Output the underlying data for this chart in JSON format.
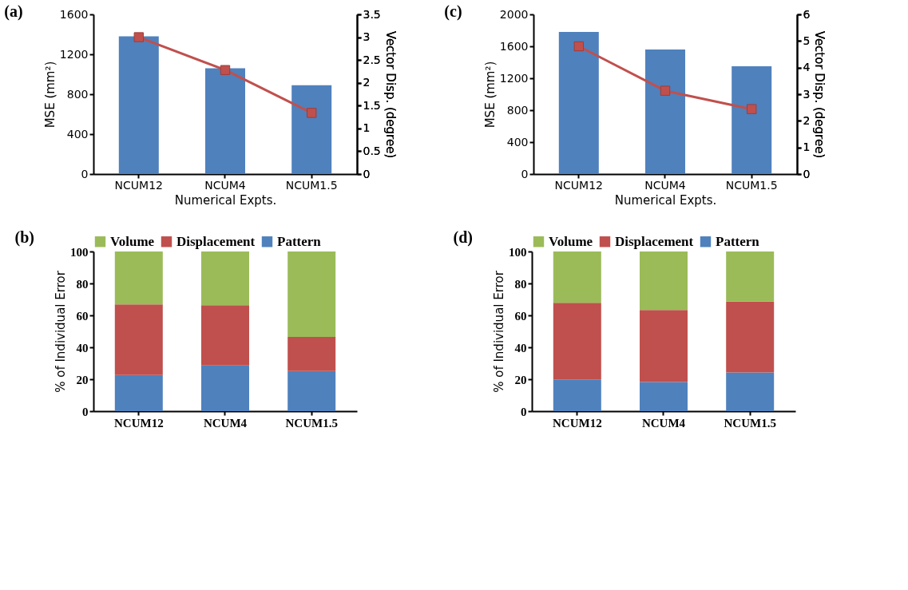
{
  "chart_data": [
    {
      "type": "bar",
      "title": "(a)",
      "xlabel": "Numerical Expts.",
      "ylabel": "MSE (mm²)",
      "y2label": "Vector Disp. (degree)",
      "categories": [
        "NCUM12",
        "NCUM4",
        "NCUM1.5"
      ],
      "marker": "square",
      "grid": false,
      "series": [
        {
          "type": "bar",
          "color": "#4f81bd",
          "values": [
            1380,
            1060,
            890
          ]
        },
        {
          "type": "line",
          "axis": "y2",
          "color": "#c0504d",
          "values": [
            3.0,
            2.28,
            1.34
          ]
        }
      ],
      "ylim": [
        0,
        1600
      ],
      "yticks": [
        0,
        400,
        800,
        1200,
        1600
      ],
      "y2lim": [
        0,
        3.5
      ],
      "y2ticks": [
        0,
        0.5,
        1,
        1.5,
        2,
        2.5,
        3,
        3.5
      ]
    },
    {
      "type": "bar",
      "title": "(c)",
      "xlabel": "Numerical Expts.",
      "ylabel": "MSE (mm²)",
      "y2label": "Vector Disp. (degree)",
      "categories": [
        "NCUM12",
        "NCUM4",
        "NCUM1.5"
      ],
      "marker": "square",
      "grid": false,
      "series": [
        {
          "type": "bar",
          "color": "#4f81bd",
          "values": [
            1780,
            1560,
            1350
          ]
        },
        {
          "type": "line",
          "axis": "y2",
          "color": "#c0504d",
          "values": [
            4.8,
            3.13,
            2.44
          ]
        }
      ],
      "ylim": [
        0,
        2000
      ],
      "yticks": [
        0,
        400,
        800,
        1200,
        1600,
        2000
      ],
      "y2lim": [
        0,
        6
      ],
      "y2ticks": [
        0,
        1,
        2,
        3,
        4,
        5,
        6
      ]
    },
    {
      "type": "bar",
      "title": "(b)",
      "stacked": true,
      "ylabel": "% of Individual Error",
      "categories": [
        "NCUM12",
        "NCUM4",
        "NCUM1.5"
      ],
      "grid": false,
      "legend": "top",
      "series": [
        {
          "name": "Pattern",
          "color": "#4f81bd",
          "values": [
            22.6,
            28.6,
            25.1
          ]
        },
        {
          "name": "Displacement",
          "color": "#c0504d",
          "values": [
            44.3,
            37.8,
            21.4
          ]
        },
        {
          "name": "Volume",
          "color": "#9bbb59",
          "values": [
            33.1,
            33.6,
            53.5
          ]
        }
      ],
      "ylim": [
        0,
        100
      ],
      "yticks": [
        0,
        20,
        40,
        60,
        80,
        100
      ]
    },
    {
      "type": "bar",
      "title": "(d)",
      "stacked": true,
      "ylabel": "% of Individual Error",
      "categories": [
        "NCUM12",
        "NCUM4",
        "NCUM1.5"
      ],
      "grid": false,
      "legend": "top",
      "series": [
        {
          "name": "Pattern",
          "color": "#4f81bd",
          "values": [
            19.9,
            18.2,
            24.2
          ]
        },
        {
          "name": "Displacement",
          "color": "#c0504d",
          "values": [
            48.0,
            45.2,
            44.4
          ]
        },
        {
          "name": "Volume",
          "color": "#9bbb59",
          "values": [
            32.1,
            36.6,
            31.4
          ]
        }
      ],
      "ylim": [
        0,
        100
      ],
      "yticks": [
        0,
        20,
        40,
        60,
        80,
        100
      ]
    }
  ]
}
